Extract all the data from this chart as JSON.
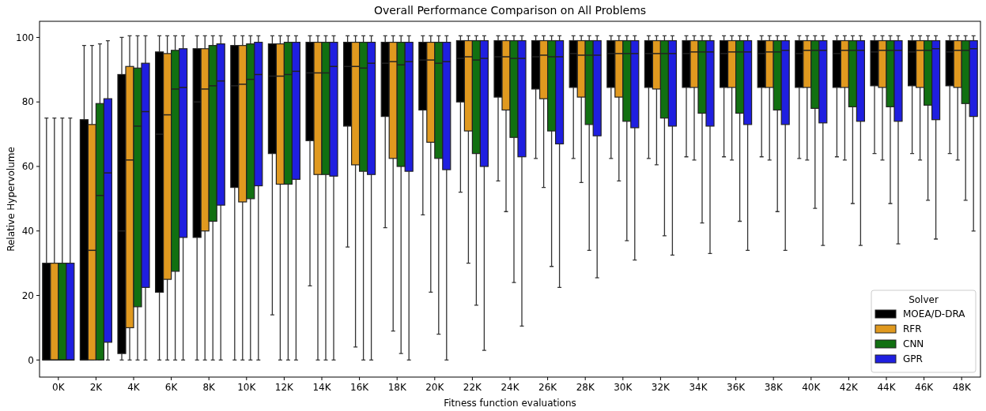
{
  "chart_data": {
    "type": "box",
    "title": "Overall Performance Comparison on All Problems",
    "xlabel": "Fitness function evaluations",
    "ylabel": "Relative Hypervolume",
    "legend_title": "Solver",
    "legend": "bottom right",
    "grid": false,
    "categories": [
      "0K",
      "2K",
      "4K",
      "6K",
      "8K",
      "10K",
      "12K",
      "14K",
      "16K",
      "18K",
      "20K",
      "22K",
      "24K",
      "26K",
      "28K",
      "30K",
      "32K",
      "34K",
      "36K",
      "38K",
      "40K",
      "42K",
      "44K",
      "46K",
      "48K"
    ],
    "ylim": [
      -5.3,
      105
    ],
    "yticks": [
      0,
      20,
      40,
      60,
      80,
      100
    ],
    "series": [
      {
        "name": "MOEA/D-DRA",
        "color": "#000000",
        "boxes": [
          {
            "low": 0,
            "q1": 0,
            "median": 0,
            "q3": 30,
            "high": 75
          },
          {
            "low": 0,
            "q1": 0,
            "median": 0,
            "q3": 74.5,
            "high": 97.5
          },
          {
            "low": 0,
            "q1": 2,
            "median": 40,
            "q3": 88.5,
            "high": 100
          },
          {
            "low": 0,
            "q1": 21,
            "median": 70,
            "q3": 95.5,
            "high": 100.5
          },
          {
            "low": 0,
            "q1": 38,
            "median": 80,
            "q3": 96.5,
            "high": 100.5
          },
          {
            "low": 0,
            "q1": 53.5,
            "median": 85,
            "q3": 97.5,
            "high": 100.5
          },
          {
            "low": 14,
            "q1": 64,
            "median": 88,
            "q3": 98,
            "high": 100.5
          },
          {
            "low": 23,
            "q1": 68,
            "median": 89,
            "q3": 98.5,
            "high": 100.5
          },
          {
            "low": 35,
            "q1": 72.5,
            "median": 91,
            "q3": 98.5,
            "high": 100.5
          },
          {
            "low": 41,
            "q1": 75.5,
            "median": 92,
            "q3": 98.5,
            "high": 100.5
          },
          {
            "low": 45,
            "q1": 77.5,
            "median": 93,
            "q3": 98.5,
            "high": 100.5
          },
          {
            "low": 52,
            "q1": 80,
            "median": 93.5,
            "q3": 99,
            "high": 100.5
          },
          {
            "low": 55.5,
            "q1": 81.5,
            "median": 94,
            "q3": 99,
            "high": 100.5
          },
          {
            "low": 62.5,
            "q1": 84,
            "median": 94,
            "q3": 99,
            "high": 100.5
          },
          {
            "low": 62.5,
            "q1": 84.5,
            "median": 95,
            "q3": 99,
            "high": 100.5
          },
          {
            "low": 62.5,
            "q1": 84.5,
            "median": 95,
            "q3": 99,
            "high": 100.5
          },
          {
            "low": 62.5,
            "q1": 84.5,
            "median": 95,
            "q3": 99,
            "high": 100.5
          },
          {
            "low": 63,
            "q1": 84.5,
            "median": 95,
            "q3": 99,
            "high": 100.5
          },
          {
            "low": 63,
            "q1": 84.5,
            "median": 95,
            "q3": 99,
            "high": 100.5
          },
          {
            "low": 63,
            "q1": 84.5,
            "median": 95,
            "q3": 99,
            "high": 100.5
          },
          {
            "low": 62.5,
            "q1": 84.5,
            "median": 95,
            "q3": 99,
            "high": 100.5
          },
          {
            "low": 63,
            "q1": 84.5,
            "median": 95,
            "q3": 99,
            "high": 100.5
          },
          {
            "low": 64,
            "q1": 85,
            "median": 95.5,
            "q3": 99,
            "high": 100.5
          },
          {
            "low": 64,
            "q1": 85,
            "median": 95.5,
            "q3": 99,
            "high": 100.5
          },
          {
            "low": 64,
            "q1": 85,
            "median": 95.5,
            "q3": 99,
            "high": 100.5
          }
        ]
      },
      {
        "name": "RFR",
        "color": "#e0991f",
        "boxes": [
          {
            "low": 0,
            "q1": 0,
            "median": 0,
            "q3": 30,
            "high": 75
          },
          {
            "low": 0,
            "q1": 0,
            "median": 34,
            "q3": 73,
            "high": 97.5
          },
          {
            "low": 0,
            "q1": 10,
            "median": 62,
            "q3": 91,
            "high": 100.5
          },
          {
            "low": 0,
            "q1": 25,
            "median": 76,
            "q3": 95,
            "high": 100.5
          },
          {
            "low": 0,
            "q1": 40,
            "median": 84,
            "q3": 96.5,
            "high": 100.5
          },
          {
            "low": 0,
            "q1": 49,
            "median": 85.5,
            "q3": 97.5,
            "high": 100.5
          },
          {
            "low": 0,
            "q1": 54.5,
            "median": 88,
            "q3": 98,
            "high": 100.5
          },
          {
            "low": 0,
            "q1": 57.5,
            "median": 89,
            "q3": 98.5,
            "high": 100.5
          },
          {
            "low": 4,
            "q1": 60.5,
            "median": 91,
            "q3": 98.5,
            "high": 100.5
          },
          {
            "low": 9,
            "q1": 62.5,
            "median": 92.5,
            "q3": 98.5,
            "high": 100.5
          },
          {
            "low": 21,
            "q1": 67.5,
            "median": 93,
            "q3": 98.5,
            "high": 100.5
          },
          {
            "low": 30,
            "q1": 71,
            "median": 94,
            "q3": 99,
            "high": 100.5
          },
          {
            "low": 46,
            "q1": 77.5,
            "median": 94,
            "q3": 99,
            "high": 100.5
          },
          {
            "low": 53.5,
            "q1": 81,
            "median": 94.5,
            "q3": 99,
            "high": 100.5
          },
          {
            "low": 55,
            "q1": 81.5,
            "median": 94.5,
            "q3": 99,
            "high": 100.5
          },
          {
            "low": 55.5,
            "q1": 81.5,
            "median": 95,
            "q3": 99,
            "high": 100.5
          },
          {
            "low": 60.5,
            "q1": 84,
            "median": 95,
            "q3": 99,
            "high": 100.5
          },
          {
            "low": 62,
            "q1": 84.5,
            "median": 95.5,
            "q3": 99,
            "high": 100.5
          },
          {
            "low": 62,
            "q1": 84.5,
            "median": 95.5,
            "q3": 99,
            "high": 100.5
          },
          {
            "low": 62,
            "q1": 84.5,
            "median": 95.5,
            "q3": 99,
            "high": 100.5
          },
          {
            "low": 62,
            "q1": 84.5,
            "median": 96,
            "q3": 99,
            "high": 100.5
          },
          {
            "low": 62,
            "q1": 84.5,
            "median": 96,
            "q3": 99,
            "high": 100.5
          },
          {
            "low": 62,
            "q1": 84.5,
            "median": 96,
            "q3": 99,
            "high": 100.5
          },
          {
            "low": 62,
            "q1": 84.5,
            "median": 96,
            "q3": 99,
            "high": 100.5
          },
          {
            "low": 62,
            "q1": 84.5,
            "median": 96,
            "q3": 99,
            "high": 100.5
          }
        ]
      },
      {
        "name": "CNN",
        "color": "#117011",
        "boxes": [
          {
            "low": 0,
            "q1": 0,
            "median": 0,
            "q3": 30,
            "high": 75
          },
          {
            "low": 0,
            "q1": 0,
            "median": 51,
            "q3": 79.5,
            "high": 98
          },
          {
            "low": 0,
            "q1": 16.5,
            "median": 72.5,
            "q3": 90.5,
            "high": 100.5
          },
          {
            "low": 0,
            "q1": 27.5,
            "median": 84,
            "q3": 96,
            "high": 100.5
          },
          {
            "low": 0,
            "q1": 43,
            "median": 85,
            "q3": 97.5,
            "high": 100.5
          },
          {
            "low": 0,
            "q1": 50,
            "median": 87,
            "q3": 98,
            "high": 100.5
          },
          {
            "low": 0,
            "q1": 54.5,
            "median": 88.5,
            "q3": 98.5,
            "high": 100.5
          },
          {
            "low": 0,
            "q1": 57.5,
            "median": 89,
            "q3": 98.5,
            "high": 100.5
          },
          {
            "low": 0,
            "q1": 58.5,
            "median": 90.5,
            "q3": 98.5,
            "high": 100.5
          },
          {
            "low": 2,
            "q1": 60,
            "median": 91.5,
            "q3": 98.5,
            "high": 100.5
          },
          {
            "low": 8,
            "q1": 62.5,
            "median": 92,
            "q3": 98.5,
            "high": 100.5
          },
          {
            "low": 17,
            "q1": 64,
            "median": 93,
            "q3": 99,
            "high": 100.5
          },
          {
            "low": 24,
            "q1": 69,
            "median": 93.5,
            "q3": 99,
            "high": 100.5
          },
          {
            "low": 29,
            "q1": 71,
            "median": 94,
            "q3": 99,
            "high": 100.5
          },
          {
            "low": 34,
            "q1": 73,
            "median": 94.5,
            "q3": 99,
            "high": 100.5
          },
          {
            "low": 37,
            "q1": 74,
            "median": 95,
            "q3": 99,
            "high": 100.5
          },
          {
            "low": 38.5,
            "q1": 75,
            "median": 95,
            "q3": 99,
            "high": 100.5
          },
          {
            "low": 42.5,
            "q1": 76.5,
            "median": 95.5,
            "q3": 99,
            "high": 100.5
          },
          {
            "low": 43,
            "q1": 76.5,
            "median": 95.5,
            "q3": 99,
            "high": 100.5
          },
          {
            "low": 46,
            "q1": 77.5,
            "median": 95.5,
            "q3": 99,
            "high": 100.5
          },
          {
            "low": 47,
            "q1": 78,
            "median": 96,
            "q3": 99,
            "high": 100.5
          },
          {
            "low": 48.5,
            "q1": 78.5,
            "median": 96,
            "q3": 99,
            "high": 100.5
          },
          {
            "low": 48.5,
            "q1": 78.5,
            "median": 96,
            "q3": 99,
            "high": 100.5
          },
          {
            "low": 49.5,
            "q1": 79,
            "median": 96,
            "q3": 99,
            "high": 100.5
          },
          {
            "low": 49.5,
            "q1": 79.5,
            "median": 96,
            "q3": 99,
            "high": 100.5
          }
        ]
      },
      {
        "name": "GPR",
        "color": "#1f1fe0",
        "boxes": [
          {
            "low": 0,
            "q1": 0,
            "median": 0,
            "q3": 30,
            "high": 75
          },
          {
            "low": 0,
            "q1": 5.5,
            "median": 58,
            "q3": 81,
            "high": 99
          },
          {
            "low": 0,
            "q1": 22.5,
            "median": 77,
            "q3": 92,
            "high": 100.5
          },
          {
            "low": 0,
            "q1": 38,
            "median": 84.5,
            "q3": 96.5,
            "high": 100.5
          },
          {
            "low": 0,
            "q1": 48,
            "median": 86.5,
            "q3": 98,
            "high": 100.5
          },
          {
            "low": 0,
            "q1": 54,
            "median": 88.5,
            "q3": 98.5,
            "high": 100.5
          },
          {
            "low": 0,
            "q1": 56,
            "median": 89.5,
            "q3": 98.5,
            "high": 100.5
          },
          {
            "low": 0,
            "q1": 57,
            "median": 91,
            "q3": 98.5,
            "high": 100.5
          },
          {
            "low": 0,
            "q1": 57.5,
            "median": 92,
            "q3": 98.5,
            "high": 100.5
          },
          {
            "low": 0,
            "q1": 58.5,
            "median": 92.5,
            "q3": 98.5,
            "high": 100.5
          },
          {
            "low": 0,
            "q1": 59,
            "median": 92.5,
            "q3": 98.5,
            "high": 100.5
          },
          {
            "low": 3,
            "q1": 60,
            "median": 93.5,
            "q3": 99,
            "high": 100.5
          },
          {
            "low": 10.5,
            "q1": 63,
            "median": 93.5,
            "q3": 99,
            "high": 100.5
          },
          {
            "low": 22.5,
            "q1": 67,
            "median": 94,
            "q3": 99,
            "high": 100.5
          },
          {
            "low": 25.5,
            "q1": 69.5,
            "median": 94.5,
            "q3": 99,
            "high": 100.5
          },
          {
            "low": 31,
            "q1": 72,
            "median": 95,
            "q3": 99,
            "high": 100.5
          },
          {
            "low": 32.5,
            "q1": 72.5,
            "median": 95,
            "q3": 99,
            "high": 100.5
          },
          {
            "low": 33,
            "q1": 72.5,
            "median": 95.5,
            "q3": 99,
            "high": 100.5
          },
          {
            "low": 34,
            "q1": 73,
            "median": 95.5,
            "q3": 99,
            "high": 100.5
          },
          {
            "low": 34,
            "q1": 73,
            "median": 96,
            "q3": 99,
            "high": 100.5
          },
          {
            "low": 35.5,
            "q1": 73.5,
            "median": 96,
            "q3": 99,
            "high": 100.5
          },
          {
            "low": 35.5,
            "q1": 74,
            "median": 96,
            "q3": 99,
            "high": 100.5
          },
          {
            "low": 36,
            "q1": 74,
            "median": 96,
            "q3": 99,
            "high": 100.5
          },
          {
            "low": 37.5,
            "q1": 74.5,
            "median": 96.5,
            "q3": 99,
            "high": 100.5
          },
          {
            "low": 40,
            "q1": 75.5,
            "median": 96.5,
            "q3": 99,
            "high": 100.5
          }
        ]
      }
    ]
  }
}
